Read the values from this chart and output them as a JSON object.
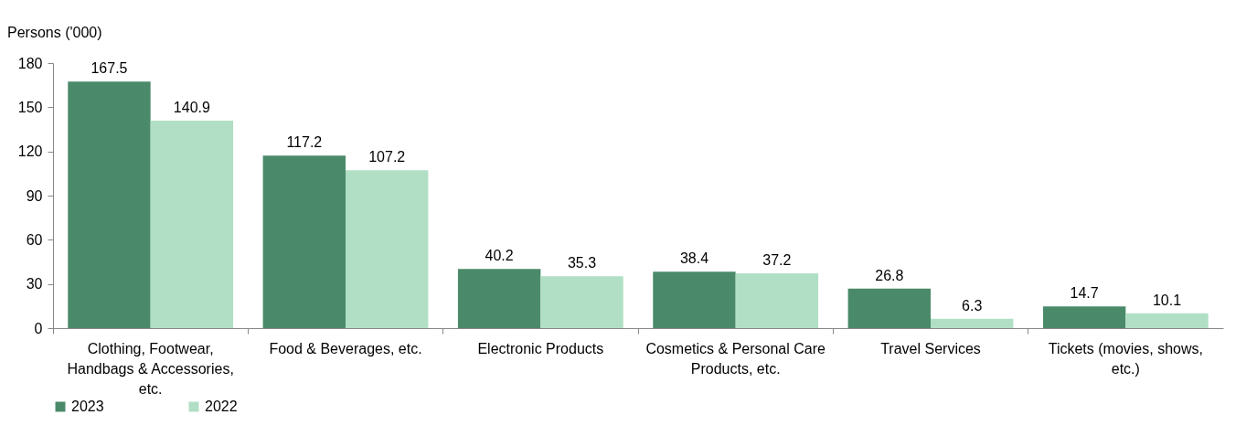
{
  "chart_data": {
    "type": "bar",
    "ylabel": "Persons ('000)",
    "categories": [
      "Clothing, Footwear, Handbags & Accessories, etc.",
      "Food & Beverages, etc.",
      "Electronic Products",
      "Cosmetics & Personal Care Products, etc.",
      "Travel Services",
      "Tickets (movies, shows, etc.)"
    ],
    "series": [
      {
        "name": "2023",
        "color": "#4a8a6a",
        "values": [
          167.5,
          117.2,
          40.2,
          38.4,
          26.8,
          14.7
        ]
      },
      {
        "name": "2022",
        "color": "#b0dfc6",
        "values": [
          140.9,
          107.2,
          35.3,
          37.2,
          6.3,
          10.1
        ]
      }
    ],
    "ylim": [
      0,
      180
    ],
    "yticks": [
      0,
      30,
      60,
      90,
      120,
      150,
      180
    ],
    "grid": false,
    "legend": "bottom",
    "data_labels": true
  }
}
